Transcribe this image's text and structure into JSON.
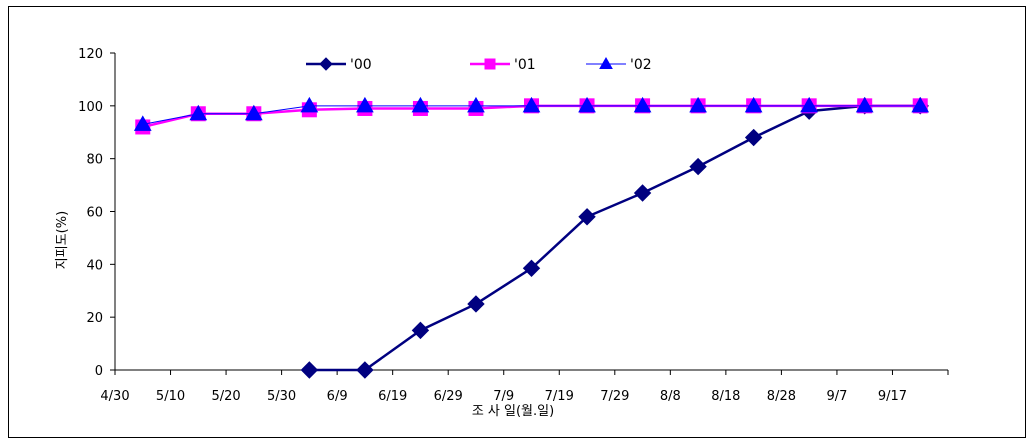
{
  "chart_data": {
    "type": "line",
    "title": "",
    "xlabel": "조 사 일(월.일)",
    "ylabel": "지피도(%)",
    "ylim": [
      0,
      120
    ],
    "yticks": [
      0,
      20,
      40,
      60,
      80,
      100,
      120
    ],
    "categories": [
      "4/30",
      "5/10",
      "5/20",
      "5/30",
      "6/9",
      "6/19",
      "6/29",
      "7/9",
      "7/19",
      "7/29",
      "8/8",
      "8/18",
      "8/28",
      "9/7",
      "9/17"
    ],
    "grid": false,
    "legend_position": "top",
    "series": [
      {
        "name": "'00",
        "color": "#000080",
        "marker": "diamond",
        "values": [
          null,
          null,
          null,
          0,
          0,
          15,
          25,
          38.5,
          58,
          67,
          77,
          88,
          98,
          100,
          100
        ]
      },
      {
        "name": "'01",
        "color": "#ff00ff",
        "marker": "square",
        "values": [
          92,
          97,
          97,
          98.5,
          99,
          99,
          99,
          100,
          100,
          100,
          100,
          100,
          100,
          100,
          100
        ]
      },
      {
        "name": "'02",
        "color": "#0000ff",
        "marker": "triangle",
        "values": [
          93,
          97,
          97,
          100,
          100,
          100,
          100,
          100,
          100,
          100,
          100,
          100,
          100,
          100,
          100
        ]
      }
    ]
  }
}
